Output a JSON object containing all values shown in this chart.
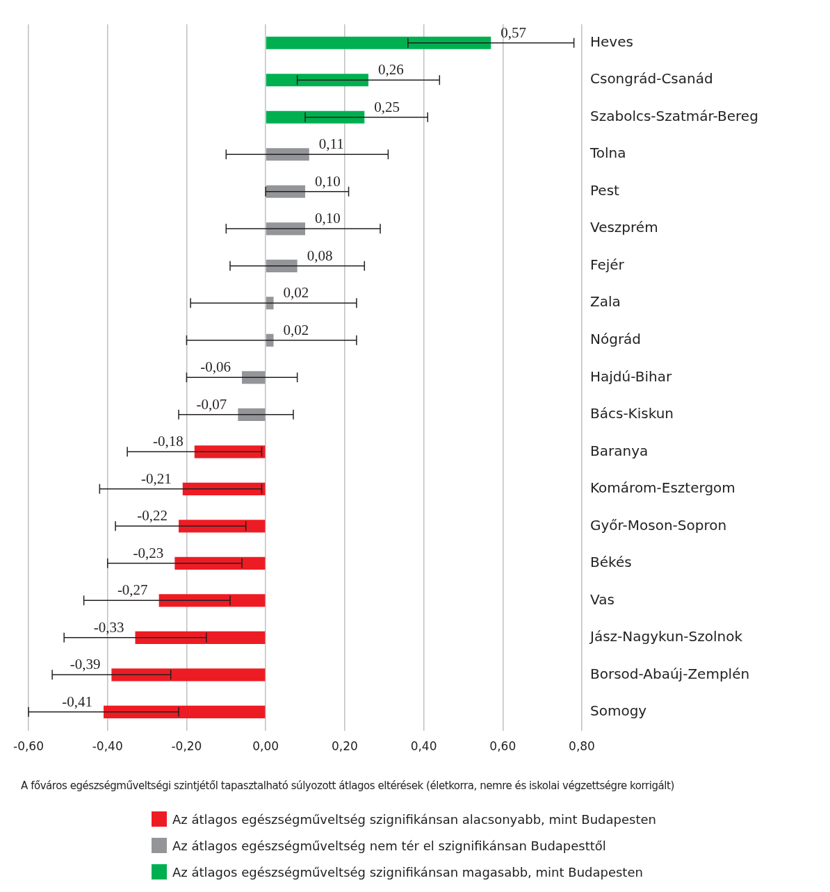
{
  "chart_data": {
    "type": "bar",
    "orientation": "horizontal",
    "stacked": true,
    "categories": [
      "Heves",
      "Csongrád-Csanád",
      "Szabolcs-Szatmár-Bereg",
      "Tolna",
      "Pest",
      "Veszprém",
      "Fejér",
      "Zala",
      "Nógrád",
      "Hajdú-Bihar",
      "Bács-Kiskun",
      "Baranya",
      "Komárom-Esztergom",
      "Győr-Moson-Sopron",
      "Békés",
      "Vas",
      "Jász-Nagykun-Szolnok",
      "Borsod-Abaúj-Zemplén",
      "Somogy"
    ],
    "series": [
      {
        "name": "Az átlagos egészségműveltség szignifikánsan alacsonyabb, mint Budapesten",
        "color": "#ed1c24",
        "values": [
          null,
          null,
          null,
          null,
          null,
          null,
          null,
          null,
          null,
          null,
          null,
          -0.18,
          -0.21,
          -0.22,
          -0.23,
          -0.27,
          -0.33,
          -0.39,
          -0.41
        ],
        "errors": [
          null,
          null,
          null,
          null,
          null,
          null,
          null,
          null,
          null,
          null,
          null,
          [
            -0.35,
            -0.01
          ],
          [
            -0.42,
            -0.01
          ],
          [
            -0.38,
            -0.05
          ],
          [
            -0.4,
            -0.06
          ],
          [
            -0.46,
            -0.09
          ],
          [
            -0.51,
            -0.15
          ],
          [
            -0.54,
            -0.24
          ],
          [
            -0.6,
            -0.22
          ]
        ],
        "value_labels": [
          null,
          null,
          null,
          null,
          null,
          null,
          null,
          null,
          null,
          null,
          null,
          "-0,18",
          "-0,21",
          "-0,22",
          "-0,23",
          "-0,27",
          "-0,33",
          "-0,39",
          "-0,41"
        ]
      },
      {
        "name": "Az átlagos egészségműveltség nem tér el szignifikánsan Budapesttől",
        "color": "#939598",
        "values": [
          null,
          null,
          null,
          0.11,
          0.1,
          0.1,
          0.08,
          0.02,
          0.02,
          -0.06,
          -0.07,
          null,
          null,
          null,
          null,
          null,
          null,
          null,
          null
        ],
        "errors": [
          null,
          null,
          null,
          [
            -0.1,
            0.31
          ],
          [
            0,
            0.21
          ],
          [
            -0.1,
            0.29
          ],
          [
            -0.09,
            0.25
          ],
          [
            -0.19,
            0.23
          ],
          [
            -0.2,
            0.23
          ],
          [
            -0.2,
            0.08
          ],
          [
            -0.22,
            0.07
          ],
          null,
          null,
          null,
          null,
          null,
          null,
          null,
          null
        ],
        "value_labels": [
          null,
          null,
          null,
          "0,11",
          "0,10",
          "0,10",
          "0,08",
          "0,02",
          "0,02",
          "-0,06",
          "-0,07",
          null,
          null,
          null,
          null,
          null,
          null,
          null,
          null
        ]
      },
      {
        "name": "Az átlagos egészségműveltség szignifikánsan magasabb, mint Budapesten",
        "color": "#00b050",
        "values": [
          0.57,
          0.26,
          0.25,
          null,
          null,
          null,
          null,
          null,
          null,
          null,
          null,
          null,
          null,
          null,
          null,
          null,
          null,
          null,
          null
        ],
        "errors": [
          [
            0.36,
            0.78
          ],
          [
            0.08,
            0.44
          ],
          [
            0.1,
            0.41
          ],
          null,
          null,
          null,
          null,
          null,
          null,
          null,
          null,
          null,
          null,
          null,
          null,
          null,
          null,
          null,
          null
        ],
        "value_labels": [
          "0,57",
          "0,26",
          "0,25",
          null,
          null,
          null,
          null,
          null,
          null,
          null,
          null,
          null,
          null,
          null,
          null,
          null,
          null,
          null,
          null
        ]
      }
    ],
    "xlim": [
      -0.6,
      0.8
    ],
    "xticks": [
      {
        "value": -0.6,
        "label": "-0,60"
      },
      {
        "value": -0.4,
        "label": "-0,40"
      },
      {
        "value": -0.2,
        "label": "-0,20"
      },
      {
        "value": 0,
        "label": "0,00"
      },
      {
        "value": 0.2,
        "label": "0,20"
      },
      {
        "value": 0.4,
        "label": "0,40"
      },
      {
        "value": 0.6,
        "label": "0,60"
      },
      {
        "value": 0.8,
        "label": "0,80"
      }
    ],
    "xlabel": "A főváros egészségműveltségi szintjétől tapasztalható súlyozott átlagos eltérések (életkorra, nemre és iskolai végzettségre korrigált)",
    "grid": "x",
    "legend": "bottom"
  }
}
